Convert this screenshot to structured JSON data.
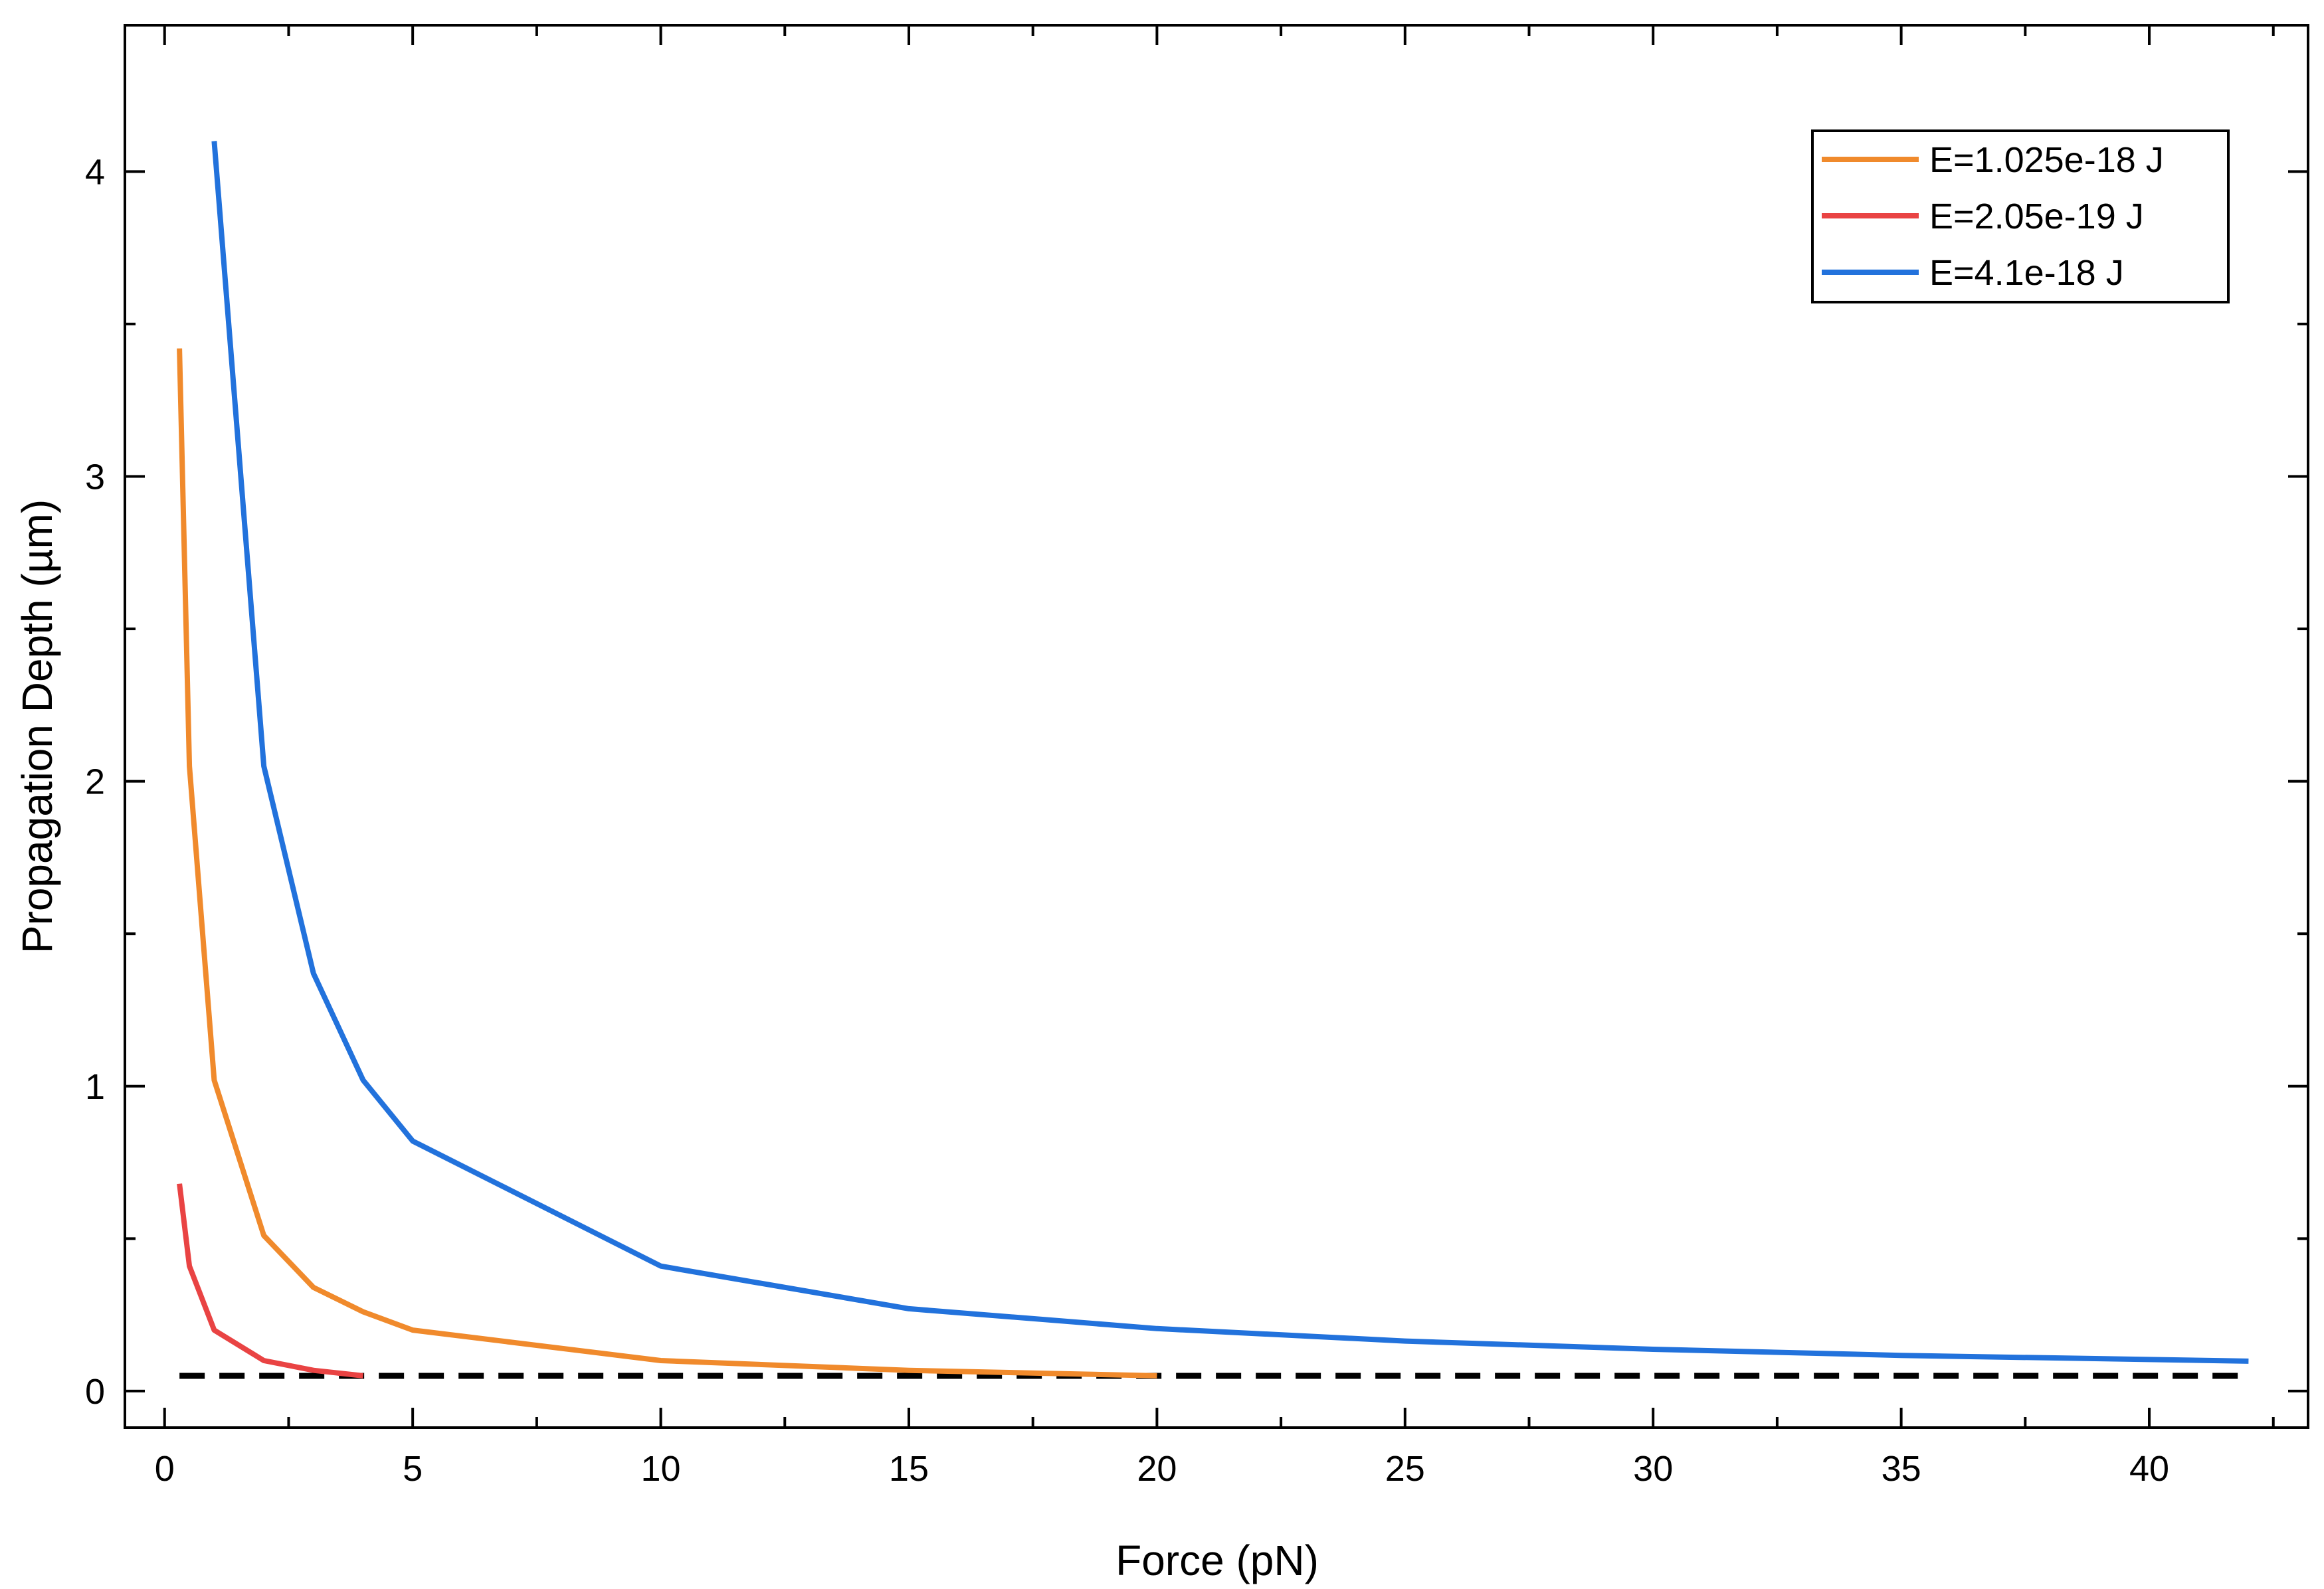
{
  "chart_data": {
    "type": "line",
    "xlabel": "Force (pN)",
    "ylabel": "Propagation Depth (µm)",
    "xlim": [
      -0.8,
      43.2
    ],
    "ylim": [
      -0.12,
      4.48
    ],
    "xticks": [
      0,
      5,
      10,
      15,
      20,
      25,
      30,
      35,
      40
    ],
    "yticks": [
      0,
      1,
      2,
      3,
      4
    ],
    "xtick_labels": [
      "0",
      "5",
      "10",
      "15",
      "20",
      "25",
      "30",
      "35",
      "40"
    ],
    "ytick_labels": [
      "0",
      "1",
      "2",
      "3",
      "4"
    ],
    "legend_position": "top-right",
    "series": [
      {
        "name": "E=1.025e-18 J",
        "color": "#f08a2c",
        "x": [
          0.3,
          0.5,
          1,
          2,
          3,
          4,
          5,
          10,
          15,
          20
        ],
        "y": [
          3.42,
          2.05,
          1.02,
          0.51,
          0.34,
          0.26,
          0.2,
          0.1,
          0.068,
          0.05
        ]
      },
      {
        "name": "E=2.05e-19 J",
        "color": "#e94343",
        "x": [
          0.3,
          0.5,
          1,
          2,
          3,
          4
        ],
        "y": [
          0.68,
          0.41,
          0.2,
          0.1,
          0.068,
          0.05
        ]
      },
      {
        "name": "E=4.1e-18 J",
        "color": "#2272dc",
        "x": [
          1,
          2,
          3,
          4,
          5,
          10,
          15,
          20,
          25,
          30,
          35,
          42
        ],
        "y": [
          4.1,
          2.05,
          1.37,
          1.02,
          0.82,
          0.41,
          0.27,
          0.205,
          0.164,
          0.137,
          0.117,
          0.098
        ]
      }
    ],
    "reference_line": {
      "y": 0.05,
      "x_range": [
        0.3,
        42
      ],
      "color": "#000000",
      "style": "dashed"
    }
  }
}
